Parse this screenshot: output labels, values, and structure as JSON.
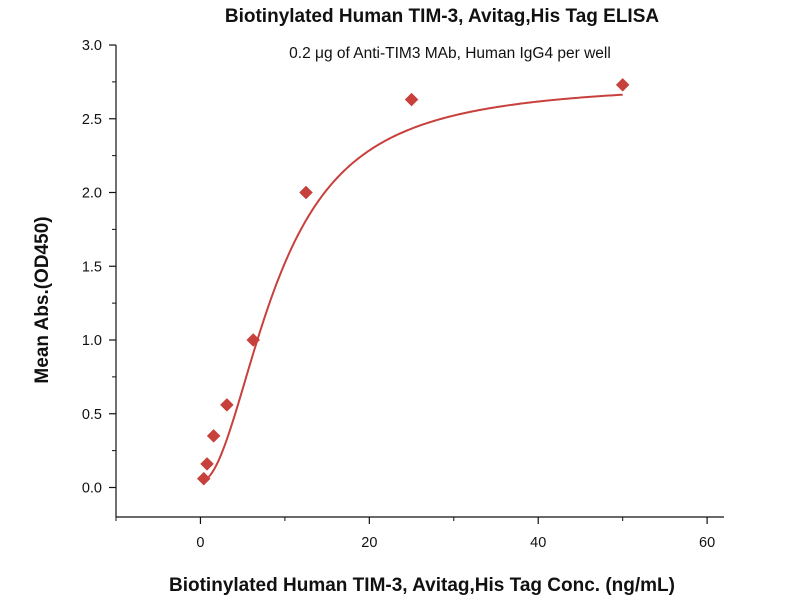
{
  "chart_data": {
    "type": "scatter",
    "title": "Biotinylated Human TIM-3, Avitag,His Tag ELISA",
    "subtitle": "0.2 μg of Anti-TIM3 MAb, Human IgG4 per well",
    "xlabel": "Biotinylated Human TIM-3, Avitag,His Tag Conc. (ng/mL)",
    "ylabel": "Mean Abs.(OD450)",
    "xlim": [
      -10,
      62
    ],
    "ylim": [
      -0.2,
      3.0
    ],
    "x_ticks": [
      0,
      20,
      40,
      60
    ],
    "x_tick_labels": [
      "0",
      "20",
      "40",
      "60"
    ],
    "y_ticks": [
      0.0,
      0.5,
      1.0,
      1.5,
      2.0,
      2.5,
      3.0
    ],
    "y_tick_labels": [
      "0.0",
      "0.5",
      "1.0",
      "1.5",
      "2.0",
      "2.5",
      "3.0"
    ],
    "grid": false,
    "legend": "none",
    "marker": "diamond",
    "color": "#c8403c",
    "points": {
      "x": [
        0.39,
        0.78,
        1.56,
        3.13,
        6.25,
        12.5,
        25,
        50
      ],
      "y": [
        0.06,
        0.16,
        0.35,
        0.56,
        1.0,
        2.0,
        2.63,
        2.73
      ]
    },
    "fit_curve": {
      "type": "4PL",
      "bottom": 0.04,
      "top": 2.75,
      "ec50": 9.1,
      "hill": 2.0,
      "x_range": [
        0.39,
        50
      ]
    }
  }
}
